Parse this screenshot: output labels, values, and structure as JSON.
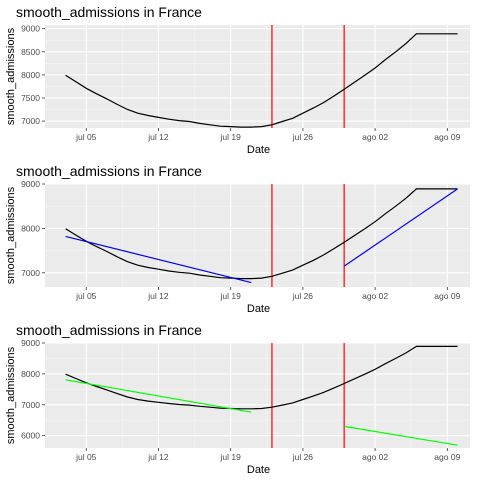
{
  "chart_data": [
    {
      "type": "line",
      "title": "smooth_admissions in France",
      "xlabel": "Date",
      "ylabel": "smooth_admissions",
      "x_ticks": [
        "jul 05",
        "jul 12",
        "jul 19",
        "jul 26",
        "ago 02",
        "ago 09"
      ],
      "y_ticks": [
        7000,
        7500,
        8000,
        8500,
        9000
      ],
      "ylim": [
        6850,
        9080
      ],
      "vlines_day": [
        22,
        29
      ],
      "series": [
        {
          "color": "#000000",
          "x": [
            2,
            3,
            4,
            5,
            6,
            7,
            8,
            9,
            10,
            11,
            12,
            13,
            14,
            15,
            16,
            17,
            18,
            19,
            20,
            21,
            22,
            23,
            24,
            25,
            26,
            27,
            28,
            29,
            30,
            31,
            32,
            33,
            34,
            35,
            36,
            37,
            38,
            39,
            40
          ],
          "y": [
            7990,
            7850,
            7710,
            7590,
            7480,
            7360,
            7250,
            7170,
            7120,
            7080,
            7040,
            7010,
            6990,
            6950,
            6920,
            6890,
            6880,
            6870,
            6870,
            6880,
            6920,
            6990,
            7060,
            7170,
            7280,
            7400,
            7540,
            7690,
            7840,
            7990,
            8150,
            8330,
            8500,
            8680,
            8890,
            9000,
            9000,
            9000,
            9000
          ]
        }
      ],
      "grid": true
    },
    {
      "type": "line",
      "title": "smooth_admissions in France",
      "xlabel": "Date",
      "ylabel": "smooth_admissions",
      "x_ticks": [
        "jul 05",
        "jul 12",
        "jul 19",
        "jul 26",
        "ago 02",
        "ago 09"
      ],
      "y_ticks": [
        7000,
        8000,
        9000
      ],
      "y_ticks_all": [
        7000,
        7500,
        8000,
        8500,
        9000
      ],
      "ylim": [
        6680,
        9000
      ],
      "vlines_day": [
        22,
        29
      ],
      "series": [
        {
          "color": "#000000",
          "x": [
            2,
            4,
            6,
            8,
            10,
            12,
            14,
            16,
            18,
            20,
            22,
            24,
            26,
            28,
            30,
            32,
            34,
            36,
            38,
            40
          ],
          "y": [
            7990,
            7710,
            7480,
            7250,
            7120,
            7040,
            6990,
            6920,
            6880,
            6870,
            6880,
            6990,
            7170,
            7400,
            7690,
            7990,
            8330,
            8680,
            8890,
            8890
          ]
        },
        {
          "color": "#0000ff",
          "x": [
            2,
            20
          ],
          "y": [
            7820,
            6780
          ]
        },
        {
          "color": "#0000ff",
          "x": [
            29,
            40
          ],
          "y": [
            7150,
            8890
          ]
        }
      ],
      "grid": true
    },
    {
      "type": "line",
      "title": "smooth_admissions in France",
      "xlabel": "Date",
      "ylabel": "smooth_admissions",
      "x_ticks": [
        "jul 05",
        "jul 12",
        "jul 19",
        "jul 26",
        "ago 02",
        "ago 09"
      ],
      "y_ticks": [
        6000,
        7000,
        8000,
        9000
      ],
      "ylim": [
        5600,
        9000
      ],
      "vlines_day": [
        22,
        29
      ],
      "series": [
        {
          "color": "#000000",
          "x": [
            2,
            4,
            6,
            8,
            10,
            12,
            14,
            16,
            18,
            20,
            22,
            24,
            26,
            28,
            30,
            32,
            34,
            36,
            38,
            40
          ],
          "y": [
            7990,
            7710,
            7480,
            7250,
            7120,
            7040,
            6990,
            6920,
            6880,
            6870,
            6880,
            6990,
            7170,
            7400,
            7690,
            7990,
            8330,
            8680,
            8890,
            8890
          ]
        },
        {
          "color": "#00ff00",
          "x": [
            2,
            20
          ],
          "y": [
            7810,
            6760
          ]
        },
        {
          "color": "#00ff00",
          "x": [
            29,
            40
          ],
          "y": [
            6300,
            5690
          ]
        }
      ],
      "grid": true
    }
  ]
}
